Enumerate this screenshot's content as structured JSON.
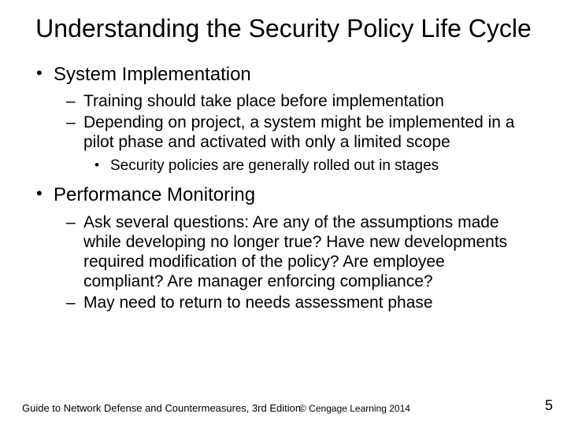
{
  "title": "Understanding the Security Policy Life Cycle",
  "sections": [
    {
      "heading": "System Implementation",
      "items": [
        "Training should take place before implementation",
        "Depending on project, a system might be implemented in a pilot phase and activated with only a limited scope"
      ],
      "subnote": "Security policies are generally rolled out in stages"
    },
    {
      "heading": "Performance Monitoring",
      "items": [
        "Ask several questions:  Are any of the assumptions made while developing no longer true?  Have new developments required modification of the policy?  Are employee compliant? Are manager enforcing compliance?",
        "May need to return to needs assessment phase"
      ]
    }
  ],
  "footer": {
    "left": "Guide to Network Defense and Countermeasures, 3rd Edition",
    "center": "© Cengage Learning  2014",
    "page": "5"
  },
  "style": {
    "background": "#ffffff",
    "text_color": "#000000",
    "title_fontsize": 32,
    "lvl1_fontsize": 24,
    "lvl2_fontsize": 21,
    "lvl3_fontsize": 19,
    "footer_fontsize": 13,
    "font_family": "Arial"
  }
}
